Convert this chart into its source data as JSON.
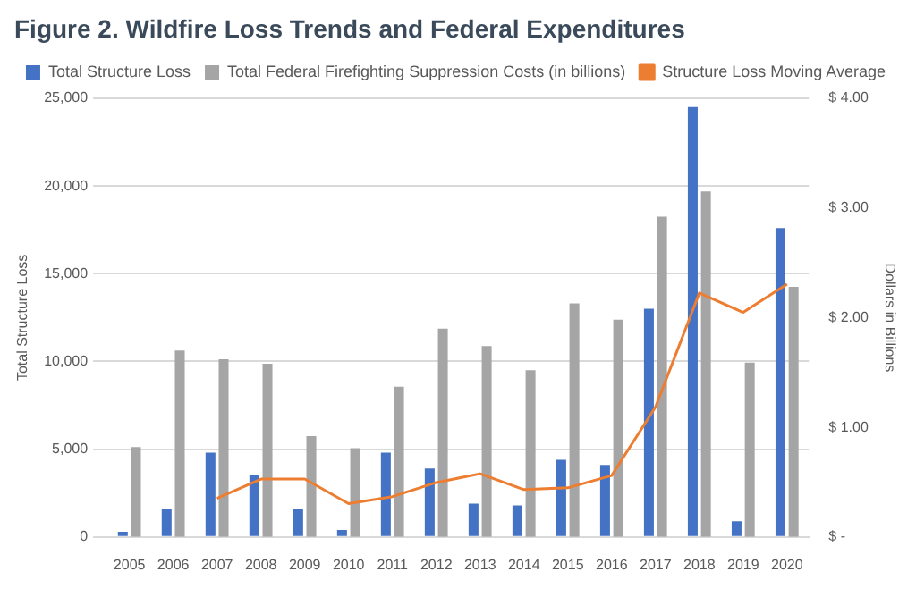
{
  "chart_data": {
    "type": "bar",
    "title": "Figure 2. Wildfire Loss Trends and Federal Expenditures",
    "ylabel": "Total Structure Loss",
    "y2label": "Dollars in Billions",
    "categories": [
      "2005",
      "2006",
      "2007",
      "2008",
      "2009",
      "2010",
      "2011",
      "2012",
      "2013",
      "2014",
      "2015",
      "2016",
      "2017",
      "2018",
      "2019",
      "2020"
    ],
    "series": [
      {
        "name": "Total Structure Loss",
        "color": "#4472c4",
        "values": [
          300,
          1600,
          4800,
          3500,
          1600,
          400,
          4800,
          3900,
          1900,
          1800,
          4400,
          4100,
          13000,
          24500,
          900,
          17600
        ]
      },
      {
        "name": "Total Federal Firefighting Suppression Costs (in billions)",
        "axis": "y2",
        "color": "#a5a5a5",
        "values": [
          0.82,
          1.7,
          1.62,
          1.58,
          0.92,
          0.81,
          1.37,
          1.9,
          1.74,
          1.52,
          2.13,
          1.98,
          2.92,
          3.15,
          1.59,
          2.28
        ]
      },
      {
        "name": "Structure Loss Moving Average",
        "type": "line",
        "color": "#ed7d31",
        "marker": "none",
        "values": [
          null,
          null,
          2200,
          3300,
          3300,
          1900,
          2300,
          3100,
          3600,
          2700,
          2800,
          3500,
          7400,
          13900,
          12800,
          14400
        ]
      }
    ],
    "ylim": [
      0,
      25000
    ],
    "yticks": [
      0,
      {
        "value": 5000,
        "label": "5,000"
      },
      {
        "value": 10000,
        "label": "10,000"
      },
      {
        "value": 15000,
        "label": "15,000"
      },
      {
        "value": 20000,
        "label": "20,000"
      },
      {
        "value": 25000,
        "label": "25,000"
      }
    ],
    "y2lim": [
      0,
      4
    ],
    "y2ticks": [
      {
        "value": 0,
        "label": "$ -"
      },
      {
        "value": 1,
        "label": "$ 1.00"
      },
      {
        "value": 2,
        "label": "$ 2.00"
      },
      {
        "value": 3,
        "label": "$ 3.00"
      },
      {
        "value": 4,
        "label": "$ 4.00"
      }
    ],
    "grid": "y",
    "legend": "top"
  }
}
